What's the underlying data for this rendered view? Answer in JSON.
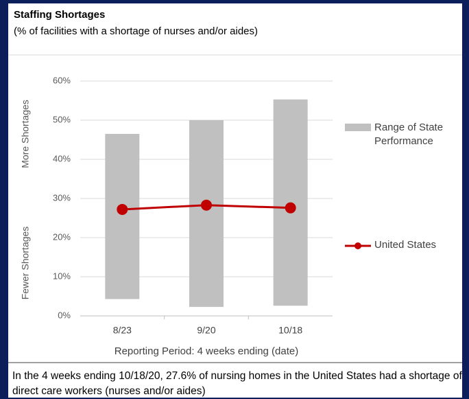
{
  "chart_data": {
    "type": "bar",
    "title": "Staffing Shortages",
    "subtitle": "(% of facilities with a shortage of nurses and/or aides)",
    "y_label_top": "More Shortages",
    "y_label_bottom": "Fewer Shortages",
    "x_label": "Reporting Period: 4 weeks ending (date)",
    "categories": [
      "8/23",
      "9/20",
      "10/18"
    ],
    "series": [
      {
        "name": "Range of State Performance",
        "type": "range",
        "color": "#c0c0c0",
        "low": [
          4.3,
          2.3,
          2.6
        ],
        "high": [
          46.5,
          50,
          55.3
        ]
      },
      {
        "name": "United States",
        "type": "line",
        "color": "#c00000",
        "values": [
          27.2,
          28.3,
          27.6
        ]
      }
    ],
    "ylim": [
      0,
      60
    ],
    "yticks": [
      {
        "value": 0,
        "label": "0%"
      },
      {
        "value": 10,
        "label": "10%"
      },
      {
        "value": 20,
        "label": "20%"
      },
      {
        "value": 30,
        "label": "30%"
      },
      {
        "value": 40,
        "label": "40%"
      },
      {
        "value": 50,
        "label": "50%"
      },
      {
        "value": 60,
        "label": "60%"
      }
    ],
    "grid": true,
    "legend": "right",
    "caption": "In the 4 weeks ending 10/18/20, 27.6% of nursing homes in the United States had a shortage of direct care workers (nurses and/or aides)"
  }
}
